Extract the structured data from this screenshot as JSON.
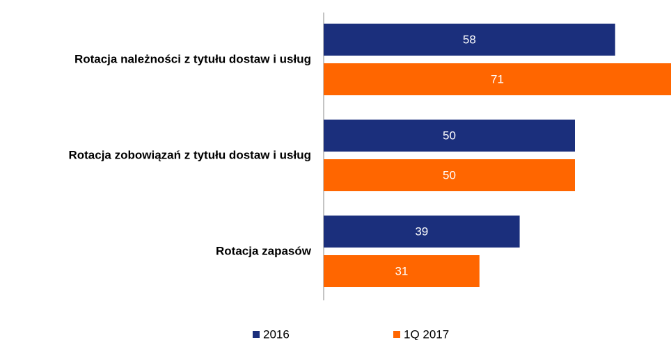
{
  "chart_data": {
    "type": "hbar",
    "categories": [
      "Rotacja należności z tytułu dostaw i usług",
      "Rotacja zobowiązań z tytułu dostaw i usług",
      "Rotacja zapasów"
    ],
    "series": [
      {
        "name": "2016",
        "color": "#1b2f7c",
        "values": [
          58,
          50,
          39
        ]
      },
      {
        "name": "1Q 2017",
        "color": "#ff6600",
        "values": [
          71,
          50,
          31
        ]
      }
    ],
    "legend": "bottom"
  }
}
